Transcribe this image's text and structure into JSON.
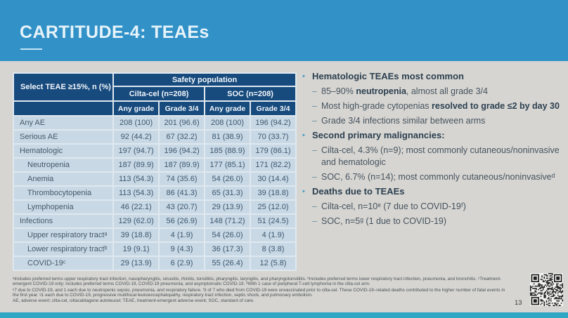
{
  "slide": {
    "title": "CARTITUDE-4: TEAEs",
    "page_number": "13"
  },
  "colors": {
    "header_blue": "#3292c8",
    "table_header_navy": "#174a7d",
    "table_row_blue": "#c8d8e5",
    "body_gray": "#d6d5d1",
    "accent_strip_teal": "#2fa6c3"
  },
  "table": {
    "corner_label": "Select TEAE ≥15%, n (%)",
    "group_header": "Safety population",
    "arm_headers": [
      "Cilta-cel (n=208)",
      "SOC (n=208)"
    ],
    "grade_headers": [
      "Any grade",
      "Grade 3/4",
      "Any grade",
      "Grade 3/4"
    ],
    "rows": [
      {
        "label": "Any AE",
        "indent": false,
        "values": [
          "208 (100)",
          "201 (96.6)",
          "208 (100)",
          "196 (94.2)"
        ]
      },
      {
        "label": "Serious AE",
        "indent": false,
        "values": [
          "92 (44.2)",
          "67 (32.2)",
          "81 (38.9)",
          "70 (33.7)"
        ]
      },
      {
        "label": "Hematologic",
        "indent": false,
        "values": [
          "197 (94.7)",
          "196 (94.2)",
          "185 (88.9)",
          "179 (86.1)"
        ]
      },
      {
        "label": "Neutropenia",
        "indent": true,
        "values": [
          "187 (89.9)",
          "187 (89.9)",
          "177 (85.1)",
          "171 (82.2)"
        ]
      },
      {
        "label": "Anemia",
        "indent": true,
        "values": [
          "113 (54.3)",
          "74 (35.6)",
          "54 (26.0)",
          "30 (14.4)"
        ]
      },
      {
        "label": "Thrombocytopenia",
        "indent": true,
        "values": [
          "113 (54.3)",
          "86 (41.3)",
          "65 (31.3)",
          "39 (18.8)"
        ]
      },
      {
        "label": "Lymphopenia",
        "indent": true,
        "values": [
          "46 (22.1)",
          "43 (20.7)",
          "29 (13.9)",
          "25 (12.0)"
        ]
      },
      {
        "label": "Infections",
        "indent": false,
        "values": [
          "129 (62.0)",
          "56 (26.9)",
          "148 (71.2)",
          "51 (24.5)"
        ]
      },
      {
        "label": "Upper respiratory tractᵃ",
        "indent": true,
        "values": [
          "39 (18.8)",
          "4 (1.9)",
          "54 (26.0)",
          "4 (1.9)"
        ]
      },
      {
        "label": "Lower respiratory tractᵇ",
        "indent": true,
        "values": [
          "19 (9.1)",
          "9 (4.3)",
          "36 (17.3)",
          "8 (3.8)"
        ]
      },
      {
        "label": "COVID-19ᶜ",
        "indent": true,
        "values": [
          "29 (13.9)",
          "6 (2.9)",
          "55 (26.4)",
          "12 (5.8)"
        ]
      }
    ]
  },
  "bullets": {
    "markers": {
      "level1": "•",
      "level2": "–"
    },
    "items": [
      {
        "level": 1,
        "segments": [
          {
            "text": "Hematologic TEAEs most common",
            "bold": true
          }
        ]
      },
      {
        "level": 2,
        "segments": [
          {
            "text": "85–90% ",
            "bold": false
          },
          {
            "text": "neutropenia",
            "bold": true
          },
          {
            "text": ", almost all grade 3/4",
            "bold": false
          }
        ]
      },
      {
        "level": 2,
        "segments": [
          {
            "text": "Most high-grade cytopenias ",
            "bold": false
          },
          {
            "text": "resolved to grade ≤2 by day 30",
            "bold": true
          }
        ]
      },
      {
        "level": 2,
        "segments": [
          {
            "text": "Grade 3/4 infections similar between arms",
            "bold": false
          }
        ]
      },
      {
        "level": 1,
        "segments": [
          {
            "text": "Second primary malignancies:",
            "bold": true
          }
        ]
      },
      {
        "level": 2,
        "segments": [
          {
            "text": "Cilta-cel, 4.3% (n=9); most commonly cutaneous/noninvasive and hematologic",
            "bold": false
          }
        ]
      },
      {
        "level": 2,
        "segments": [
          {
            "text": "SOC, 6.7% (n=14); most commonly cutaneous/noninvasiveᵈ",
            "bold": false
          }
        ]
      },
      {
        "level": 1,
        "segments": [
          {
            "text": "Deaths due to TEAEs",
            "bold": true
          }
        ]
      },
      {
        "level": 2,
        "segments": [
          {
            "text": "Cilta-cel, n=10ᵉ (7 due to COVID-19ᶠ)",
            "bold": false
          }
        ]
      },
      {
        "level": 2,
        "segments": [
          {
            "text": "SOC, n=5ᵍ (1 due to COVID-19)",
            "bold": false
          }
        ]
      }
    ]
  },
  "footnotes": {
    "definitions": "ᵃIncludes preferred terms upper respiratory tract infection, nasopharyngitis, sinusitis, rhinitis, tonsillitis, pharyngitis, laryngitis, and pharyngotonsillitis. ᵇIncludes preferred terms lower respiratory tract infection, pneumonia, and bronchitis. ᶜTreatment-emergent COVID-19 only; includes preferred terms COVID-19, COVID-19 pneumonia, and asymptomatic COVID-19. ᵈWith 1 case of peripheral T-cell lymphoma in the cilta-cel arm.",
    "deaths_note": "ᵉ7 due to COVID-19, and 1 each due to neutropenic sepsis, pneumonia, and respiratory failure. ᶠ3 of 7 who died from COVID-19 were unvaccinated prior to cilta-cel. These COVID-19–related deaths contributed to the higher number of fatal events in the first year. ᵍ1 each due to COVID-19, progressive multifocal leukoencephalopathy, respiratory tract infection, septic shock, and pulmonary embolism.",
    "abbreviations": "AE, adverse event; cilta-cel, ciltacabtagene autoleucel; TEAE, treatment-emergent adverse event; SOC, standard of care."
  }
}
